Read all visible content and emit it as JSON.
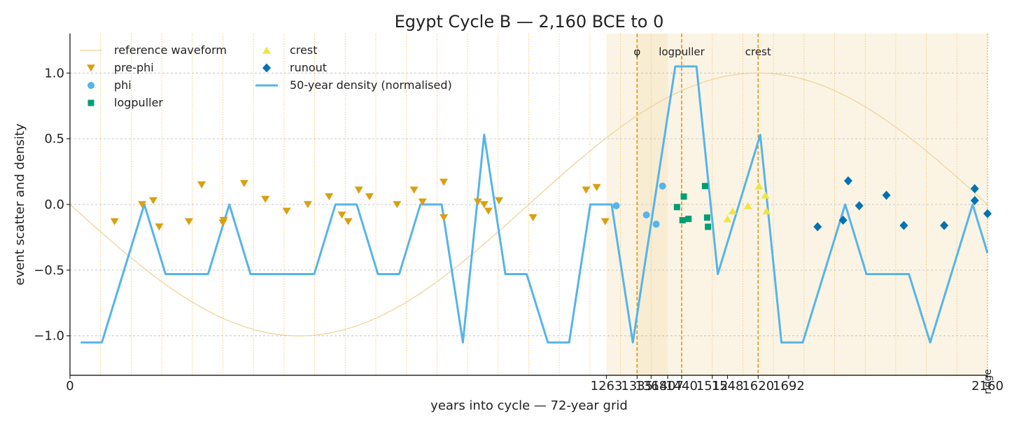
{
  "chart_data": {
    "type": "scatter",
    "title": "Egypt Cycle B — 2,160 BCE to 0",
    "xlabel": "years into cycle — 72-year grid",
    "ylabel": "event scatter and density",
    "xlim": [
      0,
      2160
    ],
    "ylim": [
      -1.3,
      1.3
    ],
    "x_ticks": [
      {
        "value": 0,
        "label": "0"
      },
      {
        "value": 1263,
        "label": "1263"
      },
      {
        "value": 1335,
        "label": "1335"
      },
      {
        "value": 1368,
        "label": "1368"
      },
      {
        "value": 1407,
        "label": "1407"
      },
      {
        "value": 1440,
        "label": "1440"
      },
      {
        "value": 1512,
        "label": "1512"
      },
      {
        "value": 1548,
        "label": "1548"
      },
      {
        "value": 1620,
        "label": "1620"
      },
      {
        "value": 1692,
        "label": "1692"
      },
      {
        "value": 2160,
        "label": "2160"
      }
    ],
    "y_ticks": [
      {
        "value": -1.0,
        "label": "−1.0"
      },
      {
        "value": -0.5,
        "label": "−0.5"
      },
      {
        "value": 0.0,
        "label": "0.0"
      },
      {
        "value": 0.5,
        "label": "0.5"
      },
      {
        "value": 1.0,
        "label": "1.0"
      }
    ],
    "grid": true,
    "grid_step_years": 72,
    "legend_position": "top-left",
    "shaded_spans": [
      [
        1263,
        1548
      ],
      [
        1335,
        1407
      ],
      [
        1548,
        2160
      ]
    ],
    "markers": [
      {
        "x": 1335,
        "label": "φ"
      },
      {
        "x": 1440,
        "label": "logpuller"
      },
      {
        "x": 1620,
        "label": "crest"
      }
    ],
    "end_marker": {
      "x": 2160,
      "label": "ridge"
    },
    "reference_waveform": {
      "name": "reference waveform",
      "color": "#f0d49a",
      "period_years": 2160,
      "amplitude": 1.0,
      "peak_at_year": 1620
    },
    "series": [
      {
        "name": "pre-phi",
        "marker": "triangle-down",
        "color": "#d9a010",
        "points": [
          [
            105,
            -0.13
          ],
          [
            170,
            0.0
          ],
          [
            196,
            0.03
          ],
          [
            210,
            -0.17
          ],
          [
            280,
            -0.13
          ],
          [
            310,
            0.15
          ],
          [
            360,
            -0.14
          ],
          [
            362,
            -0.12
          ],
          [
            410,
            0.16
          ],
          [
            460,
            0.04
          ],
          [
            510,
            -0.05
          ],
          [
            560,
            0.0
          ],
          [
            610,
            0.06
          ],
          [
            640,
            -0.08
          ],
          [
            655,
            -0.13
          ],
          [
            680,
            0.11
          ],
          [
            705,
            0.06
          ],
          [
            770,
            0.0
          ],
          [
            810,
            0.11
          ],
          [
            830,
            0.02
          ],
          [
            880,
            -0.1
          ],
          [
            880,
            0.17
          ],
          [
            960,
            0.02
          ],
          [
            975,
            0.0
          ],
          [
            985,
            -0.05
          ],
          [
            1010,
            0.03
          ],
          [
            1090,
            -0.1
          ],
          [
            1215,
            0.11
          ],
          [
            1240,
            0.13
          ],
          [
            1260,
            -0.13
          ]
        ]
      },
      {
        "name": "phi",
        "marker": "circle",
        "color": "#56b4e9",
        "points": [
          [
            1286,
            -0.01
          ],
          [
            1357,
            -0.08
          ],
          [
            1380,
            -0.15
          ],
          [
            1395,
            0.14
          ]
        ]
      },
      {
        "name": "logpuller",
        "marker": "square",
        "color": "#009e73",
        "points": [
          [
            1429,
            -0.02
          ],
          [
            1442,
            -0.12
          ],
          [
            1445,
            0.06
          ],
          [
            1456,
            -0.11
          ],
          [
            1495,
            0.14
          ],
          [
            1500,
            -0.1
          ],
          [
            1502,
            -0.17
          ]
        ]
      },
      {
        "name": "crest",
        "marker": "triangle-up",
        "color": "#f0e442",
        "points": [
          [
            1548,
            -0.11
          ],
          [
            1560,
            -0.05
          ],
          [
            1596,
            -0.01
          ],
          [
            1622,
            0.14
          ],
          [
            1637,
            0.07
          ],
          [
            1640,
            -0.05
          ]
        ]
      },
      {
        "name": "runout",
        "marker": "diamond",
        "color": "#0072b2",
        "points": [
          [
            1760,
            -0.17
          ],
          [
            1820,
            -0.12
          ],
          [
            1832,
            0.18
          ],
          [
            1858,
            -0.01
          ],
          [
            1922,
            0.07
          ],
          [
            1963,
            -0.16
          ],
          [
            2058,
            -0.16
          ],
          [
            2130,
            0.12
          ],
          [
            2130,
            0.03
          ],
          [
            2160,
            -0.07
          ]
        ]
      },
      {
        "name": "50-year density (normalised)",
        "type": "line",
        "color": "#56b4e9",
        "points": [
          [
            25,
            -1.05
          ],
          [
            75,
            -1.05
          ],
          [
            175,
            0.0
          ],
          [
            225,
            -0.53
          ],
          [
            325,
            -0.53
          ],
          [
            375,
            0.0
          ],
          [
            425,
            -0.53
          ],
          [
            575,
            -0.53
          ],
          [
            625,
            0.0
          ],
          [
            675,
            0.0
          ],
          [
            725,
            -0.53
          ],
          [
            775,
            -0.53
          ],
          [
            825,
            0.0
          ],
          [
            875,
            0.0
          ],
          [
            925,
            -1.05
          ],
          [
            975,
            0.53
          ],
          [
            1025,
            -0.53
          ],
          [
            1075,
            -0.53
          ],
          [
            1125,
            -1.05
          ],
          [
            1175,
            -1.05
          ],
          [
            1225,
            0.0
          ],
          [
            1275,
            0.0
          ],
          [
            1325,
            -1.05
          ],
          [
            1375,
            0.0
          ],
          [
            1425,
            1.05
          ],
          [
            1475,
            1.05
          ],
          [
            1525,
            -0.53
          ],
          [
            1625,
            0.53
          ],
          [
            1675,
            -1.05
          ],
          [
            1725,
            -1.05
          ],
          [
            1825,
            0.0
          ],
          [
            1875,
            -0.53
          ],
          [
            1975,
            -0.53
          ],
          [
            2025,
            -1.05
          ],
          [
            2125,
            0.0
          ],
          [
            2160,
            -0.37
          ]
        ]
      }
    ]
  }
}
